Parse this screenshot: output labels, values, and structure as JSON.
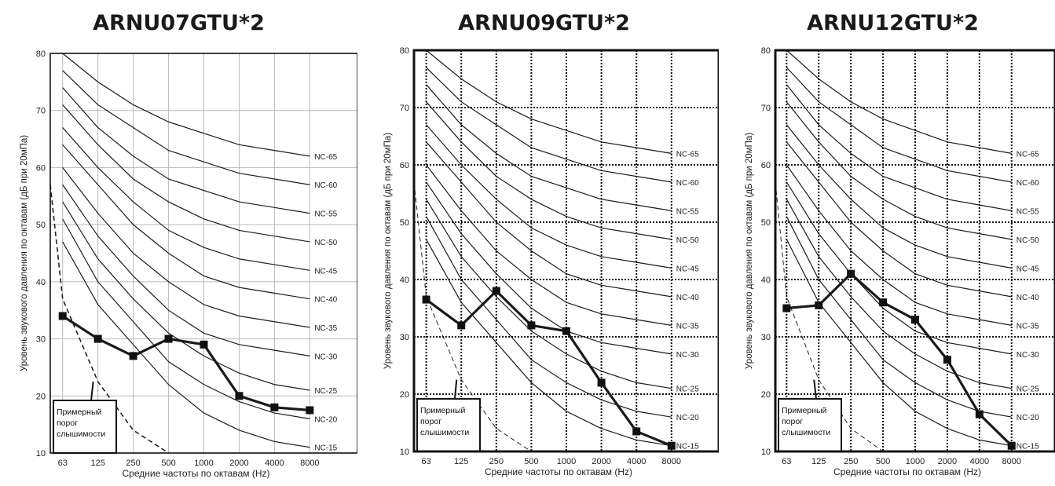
{
  "common": {
    "xlabel": "Средние частоты по октавам (Hz)",
    "ylabel": "Уровень звукового давления по октавам (дБ при 20мПа)",
    "x_ticks": [
      "63",
      "125",
      "250",
      "500",
      "1000",
      "2000",
      "4000",
      "8000"
    ],
    "y_ticks": [
      "10",
      "20",
      "30",
      "40",
      "50",
      "60",
      "70",
      "80"
    ],
    "threshold_label": [
      "Примерный",
      "порог",
      "слышимости"
    ],
    "nc_labels": [
      "NC-65",
      "NC-60",
      "NC-55",
      "NC-50",
      "NC-45",
      "NC-40",
      "NC-35",
      "NC-30",
      "NC-25",
      "NC-20",
      "NC-15"
    ]
  },
  "chart_data": [
    {
      "type": "line",
      "title": "ARNU07GTU*2",
      "x": [
        "63",
        "125",
        "250",
        "500",
        "1000",
        "2000",
        "4000",
        "8000"
      ],
      "ylim": [
        10,
        80
      ],
      "grid": "solid",
      "series": [
        {
          "values": [
            34,
            30,
            27,
            30,
            29,
            20,
            18,
            17.5
          ]
        }
      ]
    },
    {
      "type": "line",
      "title": "ARNU09GTU*2",
      "x": [
        "63",
        "125",
        "250",
        "500",
        "1000",
        "2000",
        "4000",
        "8000"
      ],
      "ylim": [
        10,
        80
      ],
      "grid": "dotted",
      "series": [
        {
          "values": [
            36.5,
            32,
            38,
            32,
            31,
            22,
            13.5,
            11
          ]
        }
      ]
    },
    {
      "type": "line",
      "title": "ARNU12GTU*2",
      "x": [
        "63",
        "125",
        "250",
        "500",
        "1000",
        "2000",
        "4000",
        "8000"
      ],
      "ylim": [
        10,
        80
      ],
      "grid": "dotted",
      "series": [
        {
          "values": [
            35,
            35.5,
            41,
            36,
            33,
            26,
            16.5,
            11
          ]
        }
      ]
    }
  ],
  "nc_curves": {
    "NC-65": [
      80,
      75,
      71,
      68,
      66,
      64,
      63,
      62
    ],
    "NC-60": [
      77,
      71,
      67,
      63,
      61,
      59,
      58,
      57
    ],
    "NC-55": [
      74,
      67,
      62,
      58,
      56,
      54,
      53,
      52
    ],
    "NC-50": [
      71,
      64,
      58,
      54,
      51,
      49,
      48,
      47
    ],
    "NC-45": [
      67,
      60,
      54,
      49,
      46,
      44,
      43,
      42
    ],
    "NC-40": [
      64,
      57,
      50,
      45,
      41,
      39,
      38,
      37
    ],
    "NC-35": [
      60,
      52,
      45,
      40,
      36,
      34,
      33,
      32
    ],
    "NC-30": [
      57,
      48,
      41,
      35,
      31,
      29,
      28,
      27
    ],
    "NC-25": [
      54,
      44,
      37,
      31,
      27,
      24,
      22,
      21
    ],
    "NC-20": [
      51,
      40,
      33,
      26,
      22,
      19,
      17,
      16
    ],
    "NC-15": [
      47,
      36,
      29,
      22,
      17,
      14,
      12,
      11
    ]
  },
  "threshold_curve": [
    57,
    37,
    22.5,
    14,
    10
  ]
}
